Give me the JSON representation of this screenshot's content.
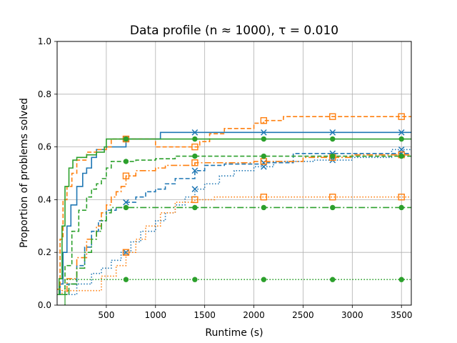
{
  "chart_data": {
    "type": "line",
    "title": "Data profile (n ≈ 1000), τ = 0.010",
    "xlabel": "Runtime (s)",
    "ylabel": "Proportion of problems solved",
    "xlim": [
      0,
      3600
    ],
    "ylim": [
      0,
      1.0
    ],
    "xticks": [
      500,
      1000,
      1500,
      2000,
      2500,
      3000,
      3500
    ],
    "xtick_labels": [
      "500",
      "1000",
      "1500",
      "2000",
      "2500",
      "3000",
      "3500"
    ],
    "yticks": [
      0,
      0.2,
      0.4,
      0.6,
      0.8,
      1.0
    ],
    "ytick_labels": [
      "0.0",
      "0.2",
      "0.4",
      "0.6",
      "0.8",
      "1.0"
    ],
    "grid": true,
    "legend": "none",
    "marker_x": [
      700,
      1400,
      2100,
      2800,
      3500
    ],
    "series": [
      {
        "color": "#1f77b4",
        "linestyle": "solid",
        "marker": "x",
        "steps": [
          [
            0,
            0.04
          ],
          [
            30,
            0.08
          ],
          [
            60,
            0.2
          ],
          [
            100,
            0.3
          ],
          [
            140,
            0.38
          ],
          [
            200,
            0.45
          ],
          [
            260,
            0.5
          ],
          [
            300,
            0.52
          ],
          [
            350,
            0.56
          ],
          [
            400,
            0.59
          ],
          [
            500,
            0.6
          ],
          [
            700,
            0.63
          ],
          [
            1050,
            0.655
          ],
          [
            3600,
            0.655
          ]
        ]
      },
      {
        "color": "#1f77b4",
        "linestyle": "dashed",
        "marker": "x",
        "steps": [
          [
            0,
            0.04
          ],
          [
            100,
            0.08
          ],
          [
            200,
            0.15
          ],
          [
            280,
            0.22
          ],
          [
            350,
            0.28
          ],
          [
            420,
            0.32
          ],
          [
            500,
            0.36
          ],
          [
            600,
            0.37
          ],
          [
            700,
            0.39
          ],
          [
            800,
            0.41
          ],
          [
            900,
            0.43
          ],
          [
            1000,
            0.44
          ],
          [
            1100,
            0.46
          ],
          [
            1200,
            0.48
          ],
          [
            1400,
            0.51
          ],
          [
            1500,
            0.53
          ],
          [
            1700,
            0.535
          ],
          [
            2100,
            0.54
          ],
          [
            2400,
            0.575
          ],
          [
            3600,
            0.575
          ]
        ]
      },
      {
        "color": "#1f77b4",
        "linestyle": "dotted",
        "marker": "x",
        "steps": [
          [
            0,
            0.04
          ],
          [
            200,
            0.08
          ],
          [
            350,
            0.12
          ],
          [
            450,
            0.14
          ],
          [
            550,
            0.17
          ],
          [
            650,
            0.2
          ],
          [
            750,
            0.24
          ],
          [
            850,
            0.28
          ],
          [
            1000,
            0.32
          ],
          [
            1100,
            0.35
          ],
          [
            1200,
            0.38
          ],
          [
            1300,
            0.41
          ],
          [
            1400,
            0.44
          ],
          [
            1500,
            0.46
          ],
          [
            1650,
            0.49
          ],
          [
            1800,
            0.51
          ],
          [
            2000,
            0.525
          ],
          [
            2200,
            0.545
          ],
          [
            2600,
            0.55
          ],
          [
            3000,
            0.56
          ],
          [
            3400,
            0.59
          ],
          [
            3600,
            0.59
          ]
        ]
      },
      {
        "color": "#ff7f0e",
        "linestyle": "dashed",
        "marker": "s",
        "steps": [
          [
            0,
            0.06
          ],
          [
            30,
            0.25
          ],
          [
            60,
            0.4
          ],
          [
            100,
            0.45
          ],
          [
            150,
            0.5
          ],
          [
            200,
            0.55
          ],
          [
            300,
            0.58
          ],
          [
            400,
            0.59
          ],
          [
            500,
            0.6
          ],
          [
            550,
            0.63
          ],
          [
            1000,
            0.6
          ],
          [
            1450,
            0.62
          ],
          [
            1550,
            0.65
          ],
          [
            1700,
            0.67
          ],
          [
            2000,
            0.69
          ],
          [
            2100,
            0.7
          ],
          [
            2300,
            0.715
          ],
          [
            3600,
            0.715
          ]
        ]
      },
      {
        "color": "#ff7f0e",
        "linestyle": "dashdot",
        "marker": "s",
        "steps": [
          [
            0,
            0.04
          ],
          [
            100,
            0.1
          ],
          [
            200,
            0.18
          ],
          [
            300,
            0.25
          ],
          [
            400,
            0.3
          ],
          [
            450,
            0.35
          ],
          [
            500,
            0.38
          ],
          [
            550,
            0.41
          ],
          [
            600,
            0.43
          ],
          [
            650,
            0.45
          ],
          [
            700,
            0.49
          ],
          [
            800,
            0.51
          ],
          [
            1000,
            0.52
          ],
          [
            1100,
            0.53
          ],
          [
            1400,
            0.54
          ],
          [
            2000,
            0.545
          ],
          [
            2500,
            0.56
          ],
          [
            3000,
            0.57
          ],
          [
            3600,
            0.57
          ]
        ]
      },
      {
        "color": "#ff7f0e",
        "linestyle": "dotted",
        "marker": "s",
        "steps": [
          [
            0,
            0.04
          ],
          [
            50,
            0.055
          ],
          [
            450,
            0.11
          ],
          [
            600,
            0.15
          ],
          [
            700,
            0.2
          ],
          [
            800,
            0.25
          ],
          [
            900,
            0.3
          ],
          [
            1050,
            0.35
          ],
          [
            1200,
            0.39
          ],
          [
            1400,
            0.4
          ],
          [
            1600,
            0.41
          ],
          [
            3600,
            0.41
          ]
        ]
      },
      {
        "color": "#2ca02c",
        "linestyle": "solid",
        "marker": "o",
        "steps": [
          [
            0,
            0.04
          ],
          [
            20,
            0.1
          ],
          [
            50,
            0.3
          ],
          [
            80,
            0.45
          ],
          [
            120,
            0.52
          ],
          [
            160,
            0.55
          ],
          [
            200,
            0.56
          ],
          [
            300,
            0.57
          ],
          [
            400,
            0.58
          ],
          [
            480,
            0.6
          ],
          [
            500,
            0.63
          ],
          [
            3600,
            0.63
          ]
        ]
      },
      {
        "color": "#2ca02c",
        "linestyle": "dashed",
        "marker": "o",
        "steps": [
          [
            0,
            0.04
          ],
          [
            80,
            0.15
          ],
          [
            150,
            0.28
          ],
          [
            220,
            0.36
          ],
          [
            300,
            0.41
          ],
          [
            350,
            0.44
          ],
          [
            400,
            0.46
          ],
          [
            450,
            0.48
          ],
          [
            500,
            0.52
          ],
          [
            550,
            0.545
          ],
          [
            800,
            0.55
          ],
          [
            1000,
            0.555
          ],
          [
            1200,
            0.565
          ],
          [
            3600,
            0.565
          ]
        ]
      },
      {
        "color": "#2ca02c",
        "linestyle": "dashdot",
        "marker": "o",
        "steps": [
          [
            0,
            0.04
          ],
          [
            120,
            0.08
          ],
          [
            200,
            0.14
          ],
          [
            280,
            0.2
          ],
          [
            350,
            0.25
          ],
          [
            400,
            0.28
          ],
          [
            450,
            0.32
          ],
          [
            500,
            0.35
          ],
          [
            550,
            0.37
          ],
          [
            3600,
            0.37
          ]
        ]
      },
      {
        "color": "#2ca02c",
        "linestyle": "dotted",
        "marker": "o",
        "steps": [
          [
            0,
            0.04
          ],
          [
            80,
            0.0
          ],
          [
            80,
            0.097
          ],
          [
            3600,
            0.097
          ]
        ]
      }
    ]
  }
}
